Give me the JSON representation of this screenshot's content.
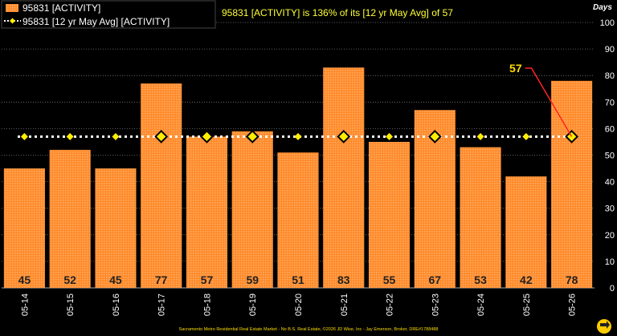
{
  "chart_data": {
    "type": "bar",
    "headline": "95831 [ACTIVITY] is 136% of its [12 yr May Avg] of 57",
    "y_unit_label": "Days",
    "ylim": [
      0,
      100
    ],
    "y_ticks": [
      0,
      10,
      20,
      30,
      40,
      50,
      60,
      70,
      80,
      90,
      100
    ],
    "grid": "horizontal",
    "legend_position": "top-left",
    "categories": [
      "05-14",
      "05-15",
      "05-16",
      "05-17",
      "05-18",
      "05-19",
      "05-20",
      "05-21",
      "05-22",
      "05-23",
      "05-24",
      "05-25",
      "05-26"
    ],
    "series": [
      {
        "name": "95831 [ACTIVITY]",
        "type": "bar",
        "values": [
          45,
          52,
          45,
          77,
          57,
          59,
          51,
          83,
          55,
          67,
          53,
          42,
          78
        ],
        "color": "#ff8c2a"
      },
      {
        "name": "95831 [12 yr May Avg] [ACTIVITY]",
        "type": "line",
        "values": [
          57,
          57,
          57,
          57,
          57,
          57,
          57,
          57,
          57,
          57,
          57,
          57,
          57
        ],
        "color": "#ffee00"
      }
    ],
    "callout": {
      "text": "57",
      "category": "05-26"
    },
    "footer": "Sacramento Metro Residential Real Estate Market - No B.S. Real Estate, ©2026 JD Wise, Inc - Jay Emerson, Broker, DRE#1788488"
  },
  "colors": {
    "background": "#000000",
    "bar": "#ff8c2a",
    "avg_marker": "#ffee00",
    "callout_line": "#ff2222",
    "headline": "#ffff33"
  },
  "logo_icon": "circle-arrow-logo-icon"
}
